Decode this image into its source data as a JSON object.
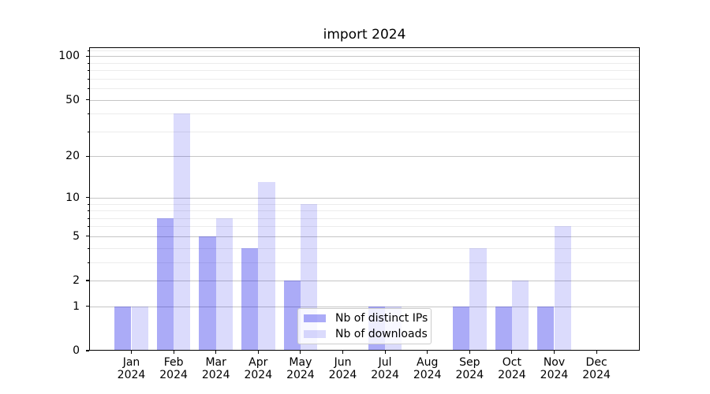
{
  "title": "import 2024",
  "chart_data": {
    "type": "bar",
    "categories": [
      "Jan",
      "Feb",
      "Mar",
      "Apr",
      "May",
      "Jun",
      "Jul",
      "Aug",
      "Sep",
      "Oct",
      "Nov",
      "Dec"
    ],
    "year_label": "2024",
    "series": [
      {
        "name": "Nb of distinct IPs",
        "color": "rgba(13,13,232,0.35)",
        "values": [
          1,
          7,
          5,
          4,
          2,
          0,
          1,
          0,
          1,
          1,
          1,
          0
        ]
      },
      {
        "name": "Nb of downloads",
        "color": "rgba(13,13,232,0.15)",
        "values": [
          1,
          40,
          7,
          13,
          9,
          0,
          1,
          0,
          4,
          2,
          6,
          0
        ]
      }
    ],
    "yscale": "log1p",
    "ylim": [
      0,
      115
    ],
    "y_major_ticks": [
      0,
      1,
      2,
      5,
      10,
      20,
      50,
      100
    ],
    "y_minor_ticks": [
      3,
      4,
      6,
      7,
      8,
      9,
      30,
      40,
      60,
      70,
      80,
      90,
      110
    ],
    "grid": true,
    "legend_position": "lower center"
  }
}
